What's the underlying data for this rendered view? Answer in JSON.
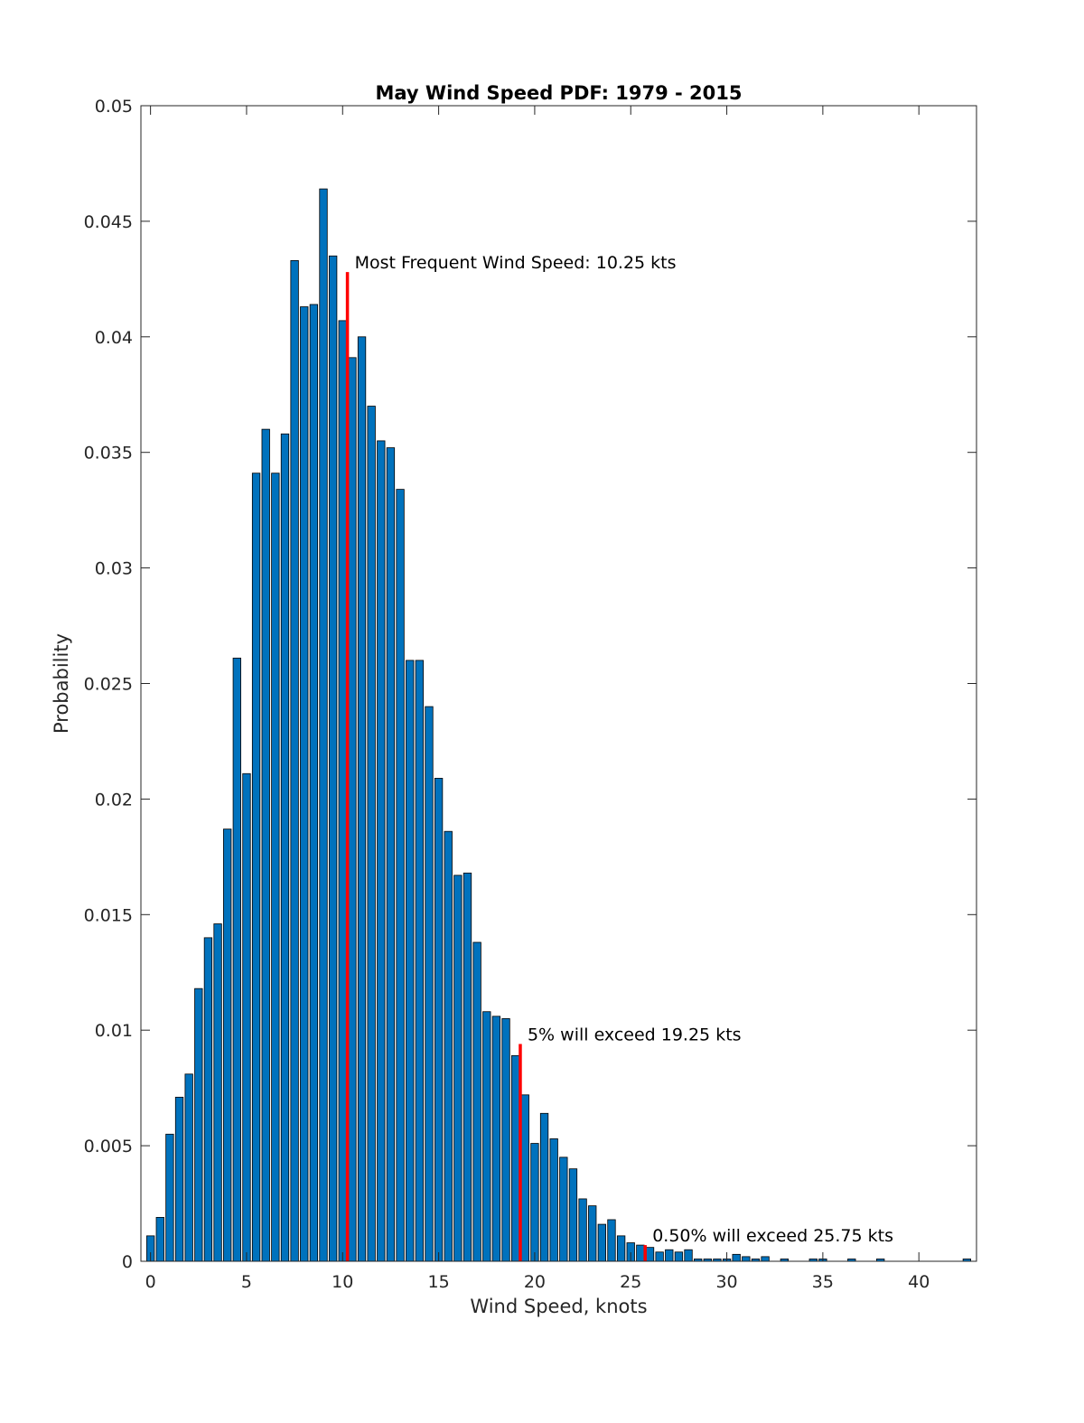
{
  "chart_data": {
    "type": "bar",
    "title": "May Wind Speed PDF: 1979 - 2015",
    "xlabel": "Wind Speed, knots",
    "ylabel": "Probability",
    "xlim": [
      -0.5,
      43
    ],
    "ylim": [
      0,
      0.05
    ],
    "bar_width": 0.4,
    "bar_color": "#0072BD",
    "marker_color": "#FF0000",
    "x_ticks": [
      0,
      5,
      10,
      15,
      20,
      25,
      30,
      35,
      40
    ],
    "y_ticks": [
      0,
      0.005,
      0.01,
      0.015,
      0.02,
      0.025,
      0.03,
      0.035,
      0.04,
      0.045,
      0.05
    ],
    "y_tick_labels": [
      "0",
      "0.005",
      "0.01",
      "0.015",
      "0.02",
      "0.025",
      "0.03",
      "0.035",
      "0.04",
      "0.045",
      "0.05"
    ],
    "x_tick_labels": [
      "0",
      "5",
      "10",
      "15",
      "20",
      "25",
      "30",
      "35",
      "40"
    ],
    "x": [
      0,
      0.5,
      1,
      1.5,
      2,
      2.5,
      3,
      3.5,
      4,
      4.5,
      5,
      5.5,
      6,
      6.5,
      7,
      7.5,
      8,
      8.5,
      9,
      9.5,
      10,
      10.5,
      11,
      11.5,
      12,
      12.5,
      13,
      13.5,
      14,
      14.5,
      15,
      15.5,
      16,
      16.5,
      17,
      17.5,
      18,
      18.5,
      19,
      19.5,
      20,
      20.5,
      21,
      21.5,
      22,
      22.5,
      23,
      23.5,
      24,
      24.5,
      25,
      25.5,
      26,
      26.5,
      27,
      27.5,
      28,
      28.5,
      29,
      29.5,
      30,
      30.5,
      31,
      31.5,
      32,
      32.5,
      33,
      33.5,
      34,
      34.5,
      35,
      35.5,
      36,
      36.5,
      37,
      37.5,
      38,
      38.5,
      39,
      39.5,
      40,
      40.5,
      41,
      41.5,
      42,
      42.5
    ],
    "values": [
      0.0011,
      0.0019,
      0.0055,
      0.0071,
      0.0081,
      0.0118,
      0.014,
      0.0146,
      0.0187,
      0.0261,
      0.0211,
      0.0341,
      0.036,
      0.0341,
      0.0358,
      0.0433,
      0.0413,
      0.0414,
      0.0464,
      0.0435,
      0.0407,
      0.0391,
      0.04,
      0.037,
      0.0355,
      0.0352,
      0.0334,
      0.026,
      0.026,
      0.024,
      0.0209,
      0.0186,
      0.0167,
      0.0168,
      0.0138,
      0.0108,
      0.0106,
      0.0105,
      0.0089,
      0.0072,
      0.0051,
      0.0064,
      0.0053,
      0.0045,
      0.004,
      0.0027,
      0.0024,
      0.0016,
      0.0018,
      0.0011,
      0.0008,
      0.0007,
      0.0006,
      0.0004,
      0.0005,
      0.0004,
      0.0005,
      0.0001,
      0.0001,
      0.0001,
      0.0001,
      0.0003,
      0.0002,
      0.0001,
      0.0002,
      0.0,
      0.0001,
      0.0,
      0.0,
      0.0001,
      0.0001,
      0.0,
      0.0,
      0.0001,
      0.0,
      0.0,
      0.0001,
      0.0,
      0.0,
      0.0,
      0.0,
      0.0,
      0.0,
      0.0,
      0.0,
      0.0001
    ],
    "markers": [
      {
        "x": 10.25,
        "y": 0.0428,
        "label": "Most Frequent Wind Speed: 10.25 kts"
      },
      {
        "x": 19.25,
        "y": 0.0094,
        "label": "5% will exceed 19.25 kts"
      },
      {
        "x": 25.75,
        "y": 0.0007,
        "label": "0.50% will exceed 25.75 kts"
      }
    ],
    "grid": false,
    "legend": "none"
  }
}
